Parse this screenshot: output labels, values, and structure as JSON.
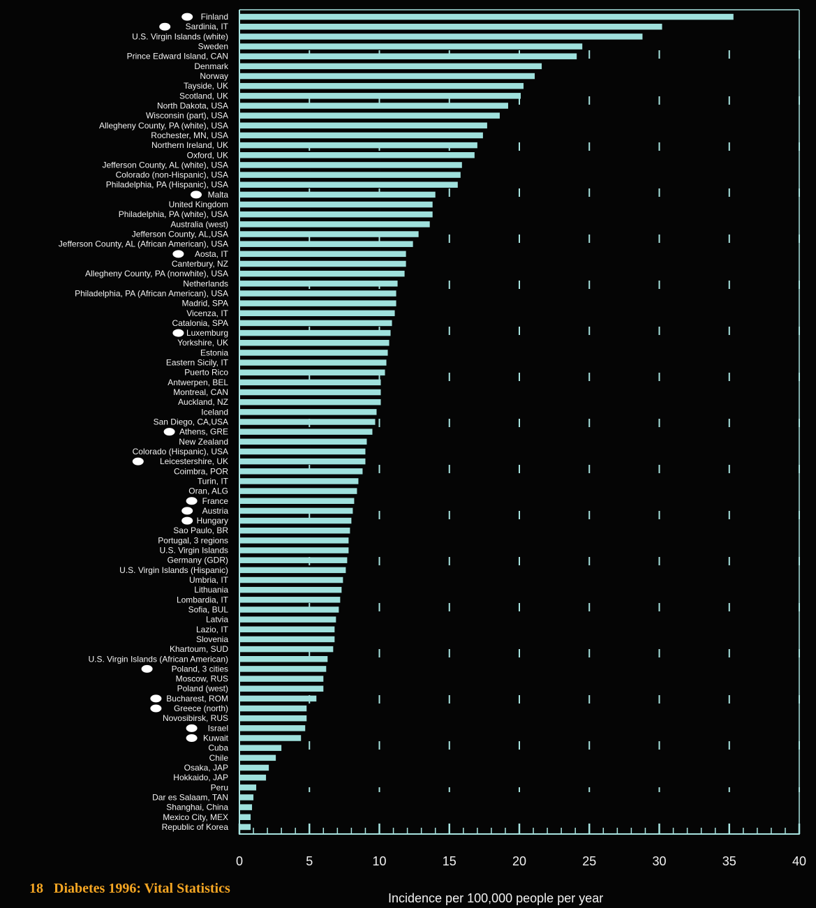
{
  "footer": {
    "page_number": "18",
    "publication": "Diabetes 1996: Vital Statistics"
  },
  "chart_data": {
    "type": "bar",
    "orientation": "horizontal",
    "title": "",
    "xlabel": "Incidence per 100,000 people per year",
    "ylabel": "",
    "xlim": [
      0,
      40
    ],
    "x_ticks": [
      0,
      5,
      10,
      15,
      20,
      25,
      30,
      35,
      40
    ],
    "grid": "dashed vertical lines at every 5 units",
    "colors": {
      "bar": "#9fe0dc",
      "axis": "#a8e4e0",
      "text": "#f2f2f2",
      "footer": "#f5a623",
      "marker": "#ffffff",
      "background": "#050505"
    },
    "categories": [
      "Finland",
      "Sardinia, IT",
      "U.S. Virgin Islands (white)",
      "Sweden",
      "Prince Edward Island, CAN",
      "Denmark",
      "Norway",
      "Tayside, UK",
      "Scotland, UK",
      "North Dakota, USA",
      "Wisconsin (part), USA",
      "Allegheny County, PA (white), USA",
      "Rochester, MN, USA",
      "Northern Ireland, UK",
      "Oxford, UK",
      "Jefferson County, AL (white), USA",
      "Colorado (non-Hispanic), USA",
      "Philadelphia, PA (Hispanic), USA",
      "Malta",
      "United Kingdom",
      "Philadelphia, PA (white), USA",
      "Australia (west)",
      "Jefferson County, AL,USA",
      "Jefferson County, AL (African American), USA",
      "Aosta, IT",
      "Canterbury, NZ",
      "Allegheny County, PA (nonwhite), USA",
      "Netherlands",
      "Philadelphia, PA (African American), USA",
      "Madrid, SPA",
      "Vicenza, IT",
      "Catalonia, SPA",
      "Luxemburg",
      "Yorkshire, UK",
      "Estonia",
      "Eastern Sicily, IT",
      "Puerto Rico",
      "Antwerpen, BEL",
      "Montreal, CAN",
      "Auckland, NZ",
      "Iceland",
      "San Diego, CA,USA",
      "Athens, GRE",
      "New Zealand",
      "Colorado (Hispanic), USA",
      "Leicestershire, UK",
      "Coimbra, POR",
      "Turin, IT",
      "Oran, ALG",
      "France",
      "Austria",
      "Hungary",
      "Sao Paulo, BR",
      "Portugal, 3 regions",
      "U.S. Virgin Islands",
      "Germany (GDR)",
      "U.S. Virgin Islands (Hispanic)",
      "Umbria, IT",
      "Lithuania",
      "Lombardia, IT",
      "Sofia, BUL",
      "Latvia",
      "Lazio, IT",
      "Slovenia",
      "Khartoum, SUD",
      "U.S. Virgin Islands (African American)",
      "Poland, 3 cities",
      "Moscow, RUS",
      "Poland (west)",
      "Bucharest, ROM",
      "Greece (north)",
      "Novosibirsk, RUS",
      "Israel",
      "Kuwait",
      "Cuba",
      "Chile",
      "Osaka, JAP",
      "Hokkaido, JAP",
      "Peru",
      "Dar es Salaam, TAN",
      "Shanghai, China",
      "Mexico City, MEX",
      "Republic of Korea"
    ],
    "values": [
      35.3,
      30.2,
      28.8,
      24.5,
      24.1,
      21.6,
      21.1,
      20.3,
      20.1,
      19.2,
      18.6,
      17.7,
      17.4,
      17.0,
      16.8,
      15.9,
      15.8,
      15.6,
      14.0,
      13.8,
      13.8,
      13.6,
      12.8,
      12.4,
      11.9,
      11.9,
      11.8,
      11.3,
      11.2,
      11.2,
      11.1,
      10.9,
      10.8,
      10.7,
      10.6,
      10.5,
      10.4,
      10.1,
      10.1,
      10.1,
      9.8,
      9.7,
      9.5,
      9.1,
      9.0,
      9.0,
      8.8,
      8.5,
      8.4,
      8.2,
      8.1,
      8.0,
      7.9,
      7.8,
      7.8,
      7.7,
      7.6,
      7.4,
      7.3,
      7.2,
      7.1,
      6.9,
      6.8,
      6.8,
      6.7,
      6.3,
      6.2,
      6.0,
      6.0,
      5.5,
      4.8,
      4.8,
      4.7,
      4.4,
      3.0,
      2.6,
      2.1,
      1.9,
      1.2,
      1.0,
      0.9,
      0.8,
      0.8
    ],
    "marked_categories": [
      "Finland",
      "Sardinia, IT",
      "Malta",
      "Aosta, IT",
      "Luxemburg",
      "Athens, GRE",
      "Leicestershire, UK",
      "France",
      "Austria",
      "Hungary",
      "Poland, 3 cities",
      "Bucharest, ROM",
      "Greece (north)",
      "Israel",
      "Kuwait"
    ]
  }
}
